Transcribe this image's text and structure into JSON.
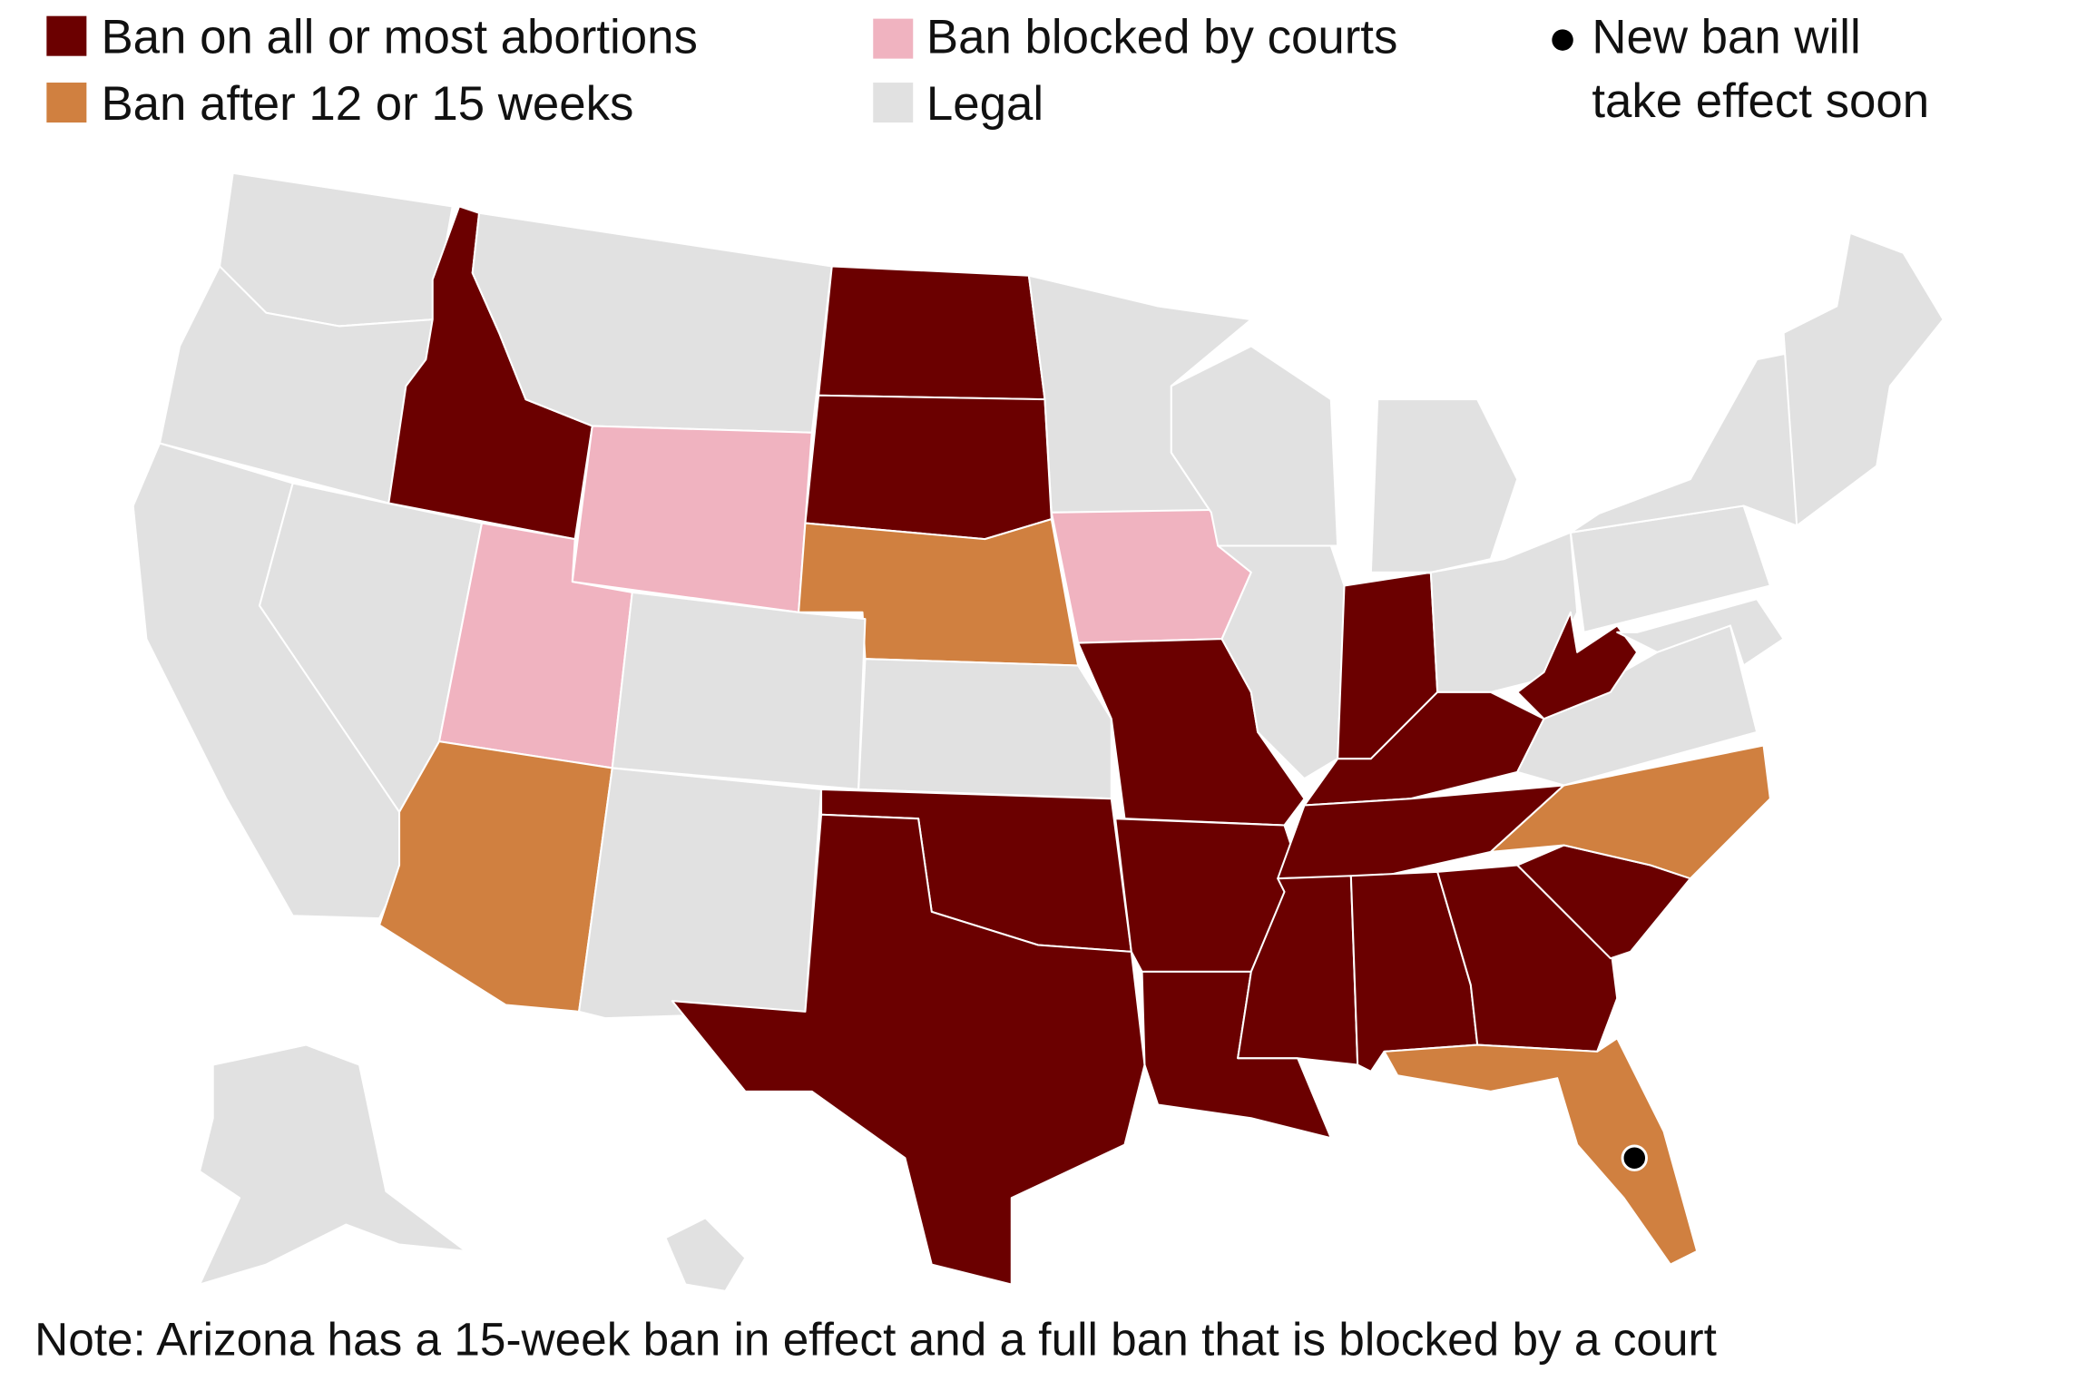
{
  "legend": {
    "ban": {
      "label": "Ban on all or most abortions",
      "color": "#6b0000"
    },
    "early": {
      "label": "Ban after 12 or 15 weeks",
      "color": "#d08040"
    },
    "blocked": {
      "label": "Ban blocked by courts",
      "color": "#f0b3c0"
    },
    "legal": {
      "label": "Legal",
      "color": "#e1e1e1"
    },
    "new_ban": {
      "line1": "New ban will",
      "line2": "take effect soon",
      "color": "#000000"
    }
  },
  "note": "Note: Arizona has a 15-week ban in effect and a full ban that is blocked by a court",
  "map_data": {
    "WA": "legal",
    "OR": "legal",
    "ID": "ban",
    "MT": "legal",
    "WY": "blocked",
    "ND": "ban",
    "SD": "ban",
    "NE": "early",
    "CA": "legal",
    "NV": "legal",
    "UT": "blocked",
    "CO": "legal",
    "AZ": "early",
    "NM": "legal",
    "KS": "legal",
    "OK": "ban",
    "TX": "ban",
    "MN": "legal",
    "IA": "blocked",
    "MO": "ban",
    "AR": "ban",
    "LA": "ban",
    "WI": "legal",
    "IL": "legal",
    "MI": "legal",
    "IN": "ban",
    "OH": "legal",
    "KY": "ban",
    "TN": "ban",
    "MS": "ban",
    "AL": "ban",
    "GA": "ban",
    "FL": "early",
    "SC": "ban",
    "NC": "early",
    "VA": "legal",
    "WV": "ban",
    "PA": "legal",
    "NY": "legal",
    "NE_REGION": "legal",
    "MID_ATLANTIC": "legal",
    "AK": "legal",
    "HI": "legal"
  },
  "markers": [
    {
      "state": "FL",
      "type": "new_ban"
    }
  ]
}
